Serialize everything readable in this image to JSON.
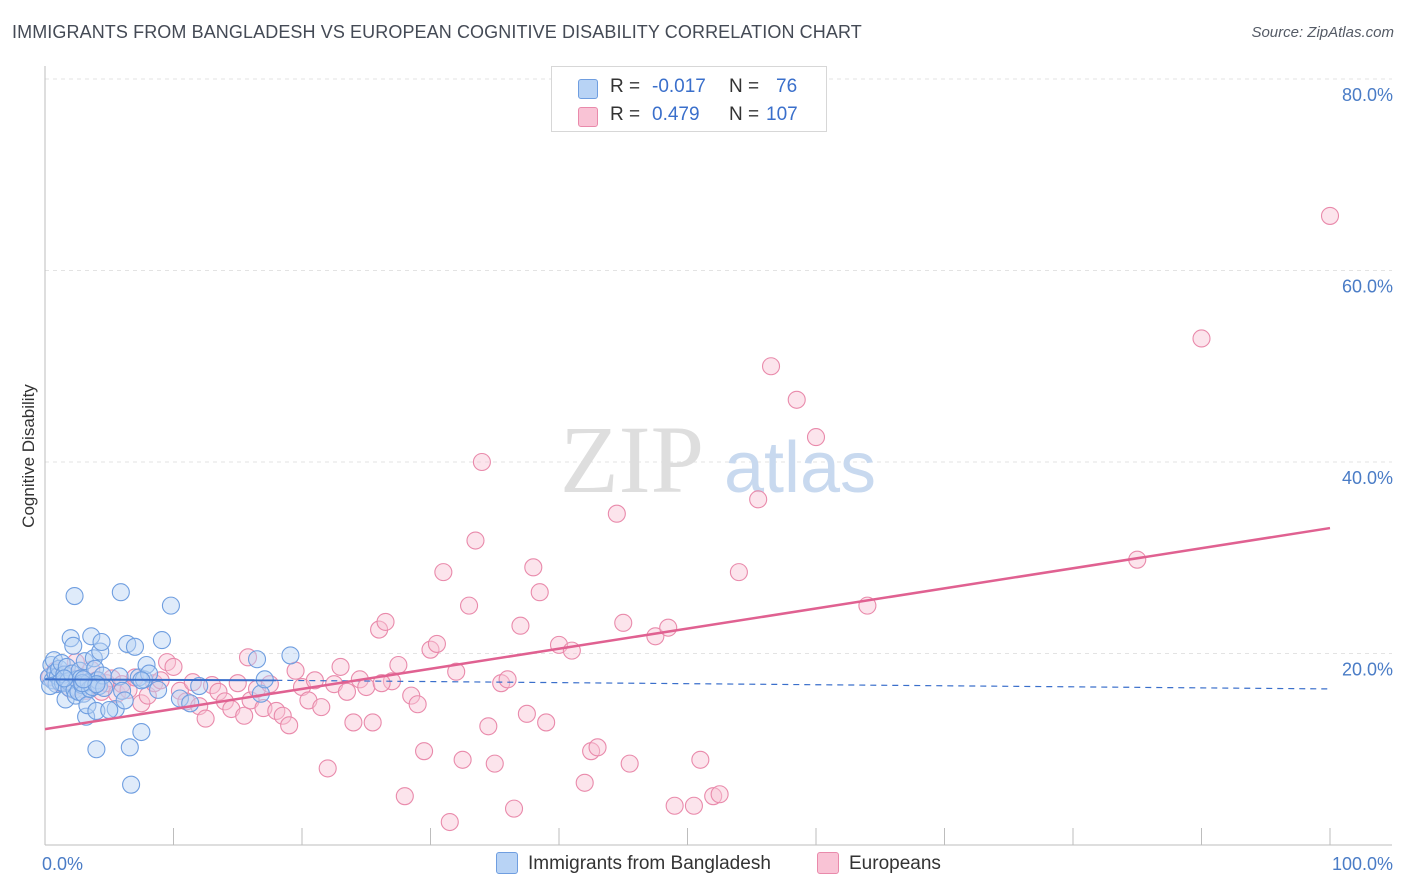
{
  "title": "IMMIGRANTS FROM BANGLADESH VS EUROPEAN COGNITIVE DISABILITY CORRELATION CHART",
  "source": "Source: ZipAtlas.com",
  "watermark": {
    "zip": "ZIP",
    "atlas": "atlas"
  },
  "legend": {
    "r_label": "R =",
    "n_label": "N =",
    "rows": [
      {
        "r": "-0.017",
        "n": "76",
        "color": "#b8d3f5",
        "border": "#6f9ee0"
      },
      {
        "r": "0.479",
        "n": "107",
        "color": "#f9c3d5",
        "border": "#e98aab"
      }
    ]
  },
  "bottom_legend": [
    {
      "label": "Immigrants from Bangladesh",
      "color": "#b8d3f5",
      "border": "#6f9ee0"
    },
    {
      "label": "Europeans",
      "color": "#f9c3d5",
      "border": "#e98aab"
    }
  ],
  "chart_data": {
    "type": "scatter",
    "title": "IMMIGRANTS FROM BANGLADESH VS EUROPEAN COGNITIVE DISABILITY CORRELATION CHART",
    "xlabel": "",
    "ylabel": "Cognitive Disability",
    "xlim": [
      0,
      100
    ],
    "ylim": [
      0,
      80
    ],
    "x_tick_labels": [
      "0.0%",
      "100.0%"
    ],
    "y_ticks": [
      20,
      40,
      60,
      80
    ],
    "y_tick_labels": [
      "20.0%",
      "40.0%",
      "60.0%",
      "80.0%"
    ],
    "grid": true,
    "colors": {
      "blue_fill": "#b8d3f5",
      "blue_edge": "#6f9ee0",
      "blue_line": "#3a6fcb",
      "pink_fill": "#f9c3d5",
      "pink_edge": "#e98aab",
      "pink_line": "#e06191"
    },
    "series": [
      {
        "name": "Immigrants from Bangladesh",
        "trend": {
          "x0": 0,
          "y0": 17.3,
          "x1": 18,
          "y1": 17.2,
          "dashed_to_x": 100,
          "dashed_to_y": 16.3
        },
        "points": [
          [
            0.3,
            17.5
          ],
          [
            0.5,
            18.8
          ],
          [
            0.6,
            17.2
          ],
          [
            0.7,
            19.3
          ],
          [
            0.8,
            18.0
          ],
          [
            0.9,
            16.8
          ],
          [
            1.0,
            17.6
          ],
          [
            1.1,
            18.4
          ],
          [
            1.2,
            17.0
          ],
          [
            1.3,
            19.0
          ],
          [
            1.4,
            16.9
          ],
          [
            1.5,
            17.8
          ],
          [
            1.6,
            15.2
          ],
          [
            1.7,
            18.6
          ],
          [
            1.8,
            17.1
          ],
          [
            1.9,
            16.4
          ],
          [
            2.0,
            21.6
          ],
          [
            2.1,
            17.9
          ],
          [
            2.2,
            20.8
          ],
          [
            2.3,
            16.2
          ],
          [
            2.4,
            15.6
          ],
          [
            2.5,
            17.3
          ],
          [
            2.6,
            16.0
          ],
          [
            2.7,
            18.2
          ],
          [
            2.8,
            17.4
          ],
          [
            2.9,
            16.7
          ],
          [
            3.0,
            15.8
          ],
          [
            3.1,
            19.2
          ],
          [
            3.2,
            13.4
          ],
          [
            3.3,
            14.6
          ],
          [
            3.4,
            17.0
          ],
          [
            3.5,
            16.3
          ],
          [
            3.6,
            21.8
          ],
          [
            3.7,
            16.5
          ],
          [
            3.8,
            19.5
          ],
          [
            3.9,
            18.4
          ],
          [
            4.0,
            14.0
          ],
          [
            4.1,
            17.2
          ],
          [
            4.2,
            16.6
          ],
          [
            4.3,
            20.2
          ],
          [
            4.4,
            21.2
          ],
          [
            4.5,
            17.7
          ],
          [
            4.6,
            16.4
          ],
          [
            5.5,
            14.2
          ],
          [
            5.8,
            17.6
          ],
          [
            6.0,
            16.1
          ],
          [
            6.2,
            15.1
          ],
          [
            6.4,
            21.0
          ],
          [
            6.6,
            10.2
          ],
          [
            6.7,
            6.3
          ],
          [
            7.0,
            20.7
          ],
          [
            7.3,
            17.5
          ],
          [
            7.5,
            11.8
          ],
          [
            7.7,
            17.3
          ],
          [
            7.9,
            18.8
          ],
          [
            8.1,
            17.9
          ],
          [
            8.8,
            16.2
          ],
          [
            9.1,
            21.4
          ],
          [
            9.8,
            25.0
          ],
          [
            10.5,
            15.3
          ],
          [
            11.3,
            14.8
          ],
          [
            12.0,
            16.6
          ],
          [
            16.5,
            19.4
          ],
          [
            16.8,
            15.8
          ],
          [
            17.1,
            17.3
          ],
          [
            19.1,
            19.8
          ],
          [
            5.9,
            26.4
          ],
          [
            2.3,
            26.0
          ],
          [
            2.9,
            16.9
          ],
          [
            0.4,
            16.6
          ],
          [
            1.5,
            17.4
          ],
          [
            4.0,
            16.8
          ],
          [
            5.0,
            14.1
          ],
          [
            7.5,
            17.2
          ],
          [
            3.0,
            17.3
          ],
          [
            4.0,
            10.0
          ]
        ]
      },
      {
        "name": "Europeans",
        "trend": {
          "x0": 0,
          "y0": 12.1,
          "x1": 100,
          "y1": 33.1
        },
        "points": [
          [
            0.4,
            17.6
          ],
          [
            0.8,
            18.2
          ],
          [
            1.2,
            16.9
          ],
          [
            1.6,
            17.8
          ],
          [
            2.0,
            16.3
          ],
          [
            2.4,
            19.1
          ],
          [
            2.8,
            17.0
          ],
          [
            3.2,
            16.1
          ],
          [
            3.6,
            18.3
          ],
          [
            4.0,
            17.2
          ],
          [
            4.4,
            16.0
          ],
          [
            4.8,
            16.9
          ],
          [
            5.2,
            17.4
          ],
          [
            5.6,
            15.8
          ],
          [
            6.0,
            16.8
          ],
          [
            6.5,
            16.2
          ],
          [
            7.0,
            17.5
          ],
          [
            7.5,
            14.8
          ],
          [
            8.0,
            15.6
          ],
          [
            8.5,
            16.9
          ],
          [
            9.0,
            17.2
          ],
          [
            9.5,
            19.1
          ],
          [
            10.0,
            18.6
          ],
          [
            10.5,
            16.1
          ],
          [
            11.0,
            15.0
          ],
          [
            11.5,
            17.0
          ],
          [
            12.0,
            14.5
          ],
          [
            12.5,
            13.2
          ],
          [
            13.0,
            16.7
          ],
          [
            13.5,
            16.0
          ],
          [
            14.0,
            15.0
          ],
          [
            14.5,
            14.2
          ],
          [
            15.0,
            16.9
          ],
          [
            15.5,
            13.5
          ],
          [
            16.0,
            15.1
          ],
          [
            16.5,
            16.3
          ],
          [
            17.0,
            14.3
          ],
          [
            17.5,
            16.8
          ],
          [
            18.0,
            14.0
          ],
          [
            18.5,
            13.5
          ],
          [
            19.0,
            12.5
          ],
          [
            19.5,
            18.2
          ],
          [
            20.0,
            16.5
          ],
          [
            20.5,
            15.1
          ],
          [
            21.0,
            17.2
          ],
          [
            21.5,
            14.4
          ],
          [
            22.0,
            8.0
          ],
          [
            22.5,
            16.8
          ],
          [
            23.0,
            18.6
          ],
          [
            23.5,
            16.0
          ],
          [
            24.0,
            12.8
          ],
          [
            24.5,
            17.3
          ],
          [
            25.0,
            16.5
          ],
          [
            25.5,
            12.8
          ],
          [
            26.0,
            22.5
          ],
          [
            26.5,
            23.3
          ],
          [
            27.0,
            17.1
          ],
          [
            27.5,
            18.8
          ],
          [
            28.0,
            5.1
          ],
          [
            28.5,
            15.6
          ],
          [
            29.0,
            14.7
          ],
          [
            29.5,
            9.8
          ],
          [
            30.0,
            20.4
          ],
          [
            30.5,
            21.0
          ],
          [
            31.0,
            28.5
          ],
          [
            31.5,
            2.4
          ],
          [
            32.0,
            18.1
          ],
          [
            32.5,
            8.9
          ],
          [
            33.0,
            25.0
          ],
          [
            33.5,
            31.8
          ],
          [
            34.0,
            40.0
          ],
          [
            34.5,
            12.4
          ],
          [
            35.0,
            8.5
          ],
          [
            35.5,
            16.9
          ],
          [
            36.0,
            17.3
          ],
          [
            36.5,
            3.8
          ],
          [
            37.0,
            22.9
          ],
          [
            37.5,
            13.7
          ],
          [
            38.0,
            29.0
          ],
          [
            38.5,
            26.4
          ],
          [
            39.0,
            12.8
          ],
          [
            40.0,
            20.9
          ],
          [
            41.0,
            20.3
          ],
          [
            42.0,
            6.5
          ],
          [
            42.5,
            9.8
          ],
          [
            43.0,
            10.2
          ],
          [
            44.5,
            34.6
          ],
          [
            45.0,
            23.2
          ],
          [
            45.5,
            8.5
          ],
          [
            47.5,
            21.8
          ],
          [
            48.5,
            22.7
          ],
          [
            50.5,
            4.1
          ],
          [
            51.0,
            8.9
          ],
          [
            52.0,
            5.1
          ],
          [
            52.5,
            5.3
          ],
          [
            54.0,
            28.5
          ],
          [
            55.5,
            36.1
          ],
          [
            60.0,
            42.6
          ],
          [
            56.5,
            50.0
          ],
          [
            58.5,
            46.5
          ],
          [
            64.0,
            25.0
          ],
          [
            85.0,
            29.8
          ],
          [
            90.0,
            52.9
          ],
          [
            100.0,
            65.7
          ],
          [
            49.0,
            4.1
          ],
          [
            15.8,
            19.6
          ],
          [
            26.2,
            16.9
          ]
        ]
      }
    ]
  }
}
